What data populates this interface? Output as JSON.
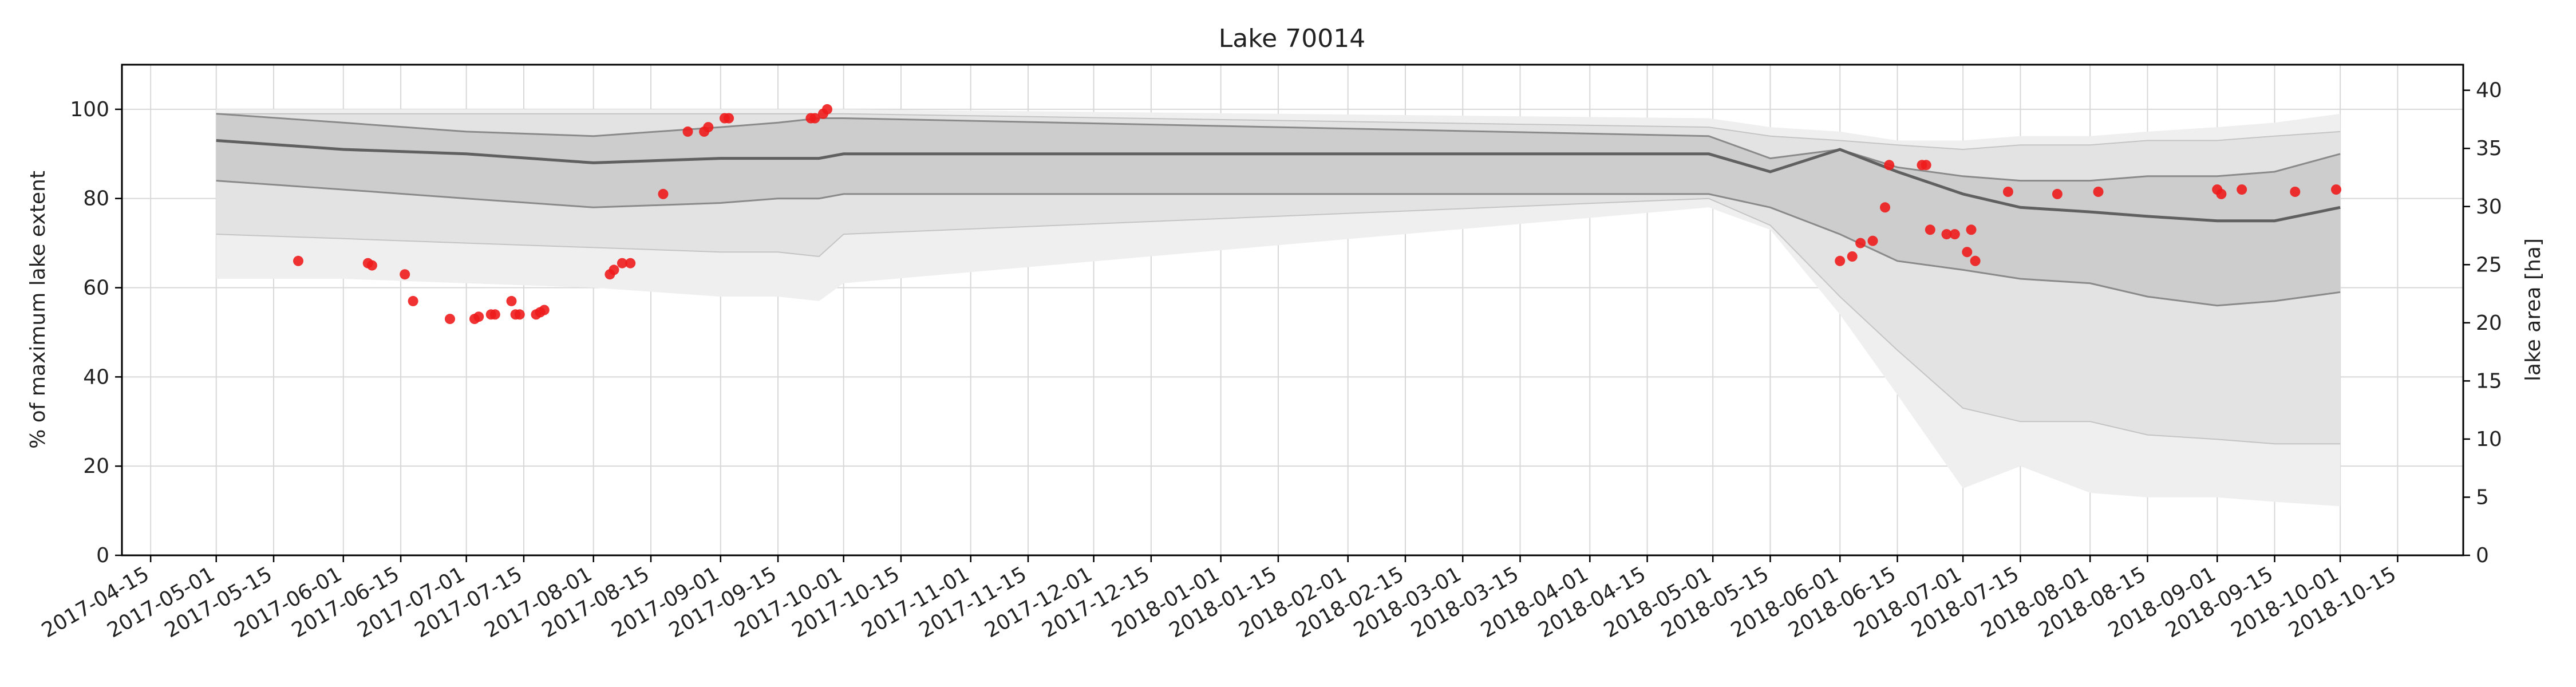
{
  "chart_data": {
    "type": "line",
    "title": "Lake 70014",
    "ylabel": "% of maximum lake extent",
    "y2label": "lake area [ha]",
    "xlabel": "",
    "ylim": [
      0,
      110
    ],
    "y2lim": [
      0,
      42.2
    ],
    "xlim": [
      "2017-04-08",
      "2018-10-31"
    ],
    "grid": true,
    "yticks": [
      0,
      20,
      40,
      60,
      80,
      100
    ],
    "y2ticks": [
      0,
      5,
      10,
      15,
      20,
      25,
      30,
      35,
      40
    ],
    "xticks": [
      "2017-04-15",
      "2017-05-01",
      "2017-05-15",
      "2017-06-01",
      "2017-06-15",
      "2017-07-01",
      "2017-07-15",
      "2017-08-01",
      "2017-08-15",
      "2017-09-01",
      "2017-09-15",
      "2017-10-01",
      "2017-10-15",
      "2017-11-01",
      "2017-11-15",
      "2017-12-01",
      "2017-12-15",
      "2018-01-01",
      "2018-01-15",
      "2018-02-01",
      "2018-02-15",
      "2018-03-01",
      "2018-03-15",
      "2018-04-01",
      "2018-04-15",
      "2018-05-01",
      "2018-05-15",
      "2018-06-01",
      "2018-06-15",
      "2018-07-01",
      "2018-07-15",
      "2018-08-01",
      "2018-08-15",
      "2018-09-01",
      "2018-09-15",
      "2018-10-01",
      "2018-10-15"
    ],
    "colors": {
      "band_outer": "#efefef",
      "band_middle": "#e3e3e3",
      "band_inner": "#cdcdcd",
      "band_edge": "#8a8a8a",
      "median": "#606060",
      "points": "#ee1c1c"
    },
    "bands": {
      "x": [
        "2017-05-01",
        "2017-06-01",
        "2017-07-01",
        "2017-08-01",
        "2017-09-01",
        "2017-09-15",
        "2017-09-25",
        "2017-10-01",
        "2018-04-30",
        "2018-05-15",
        "2018-06-01",
        "2018-06-15",
        "2018-07-01",
        "2018-07-15",
        "2018-08-01",
        "2018-08-15",
        "2018-09-01",
        "2018-09-15",
        "2018-10-01"
      ],
      "outer_upper": [
        100,
        100,
        100,
        100,
        100,
        100,
        100,
        100,
        98,
        96,
        95,
        93,
        93,
        94,
        94,
        95,
        96,
        97,
        99
      ],
      "outer_lower": [
        62,
        62,
        61,
        60,
        58,
        58,
        57,
        61,
        78,
        73,
        54,
        36,
        15,
        20,
        14,
        13,
        13,
        12,
        11
      ],
      "middle_upper": [
        99,
        99,
        99,
        99,
        99,
        99,
        99,
        99,
        96,
        94,
        93,
        92,
        91,
        92,
        92,
        93,
        93,
        94,
        95
      ],
      "middle_lower": [
        72,
        71,
        70,
        69,
        68,
        68,
        67,
        72,
        80,
        74,
        58,
        46,
        33,
        30,
        30,
        27,
        26,
        25,
        25
      ],
      "inner_upper": [
        99,
        97,
        95,
        94,
        96,
        97,
        98,
        98,
        94,
        89,
        91,
        87,
        85,
        84,
        84,
        85,
        85,
        86,
        90
      ],
      "inner_lower": [
        84,
        82,
        80,
        78,
        79,
        80,
        80,
        81,
        81,
        78,
        72,
        66,
        64,
        62,
        61,
        58,
        56,
        57,
        59
      ],
      "median": [
        93,
        91,
        90,
        88,
        89,
        89,
        89,
        90,
        90,
        86,
        91,
        86,
        81,
        78,
        77,
        76,
        75,
        75,
        78
      ]
    },
    "points": {
      "x": [
        "2017-05-21",
        "2017-06-07",
        "2017-06-08",
        "2017-06-16",
        "2017-06-18",
        "2017-06-27",
        "2017-07-03",
        "2017-07-04",
        "2017-07-07",
        "2017-07-08",
        "2017-07-12",
        "2017-07-13",
        "2017-07-14",
        "2017-07-18",
        "2017-07-19",
        "2017-07-20",
        "2017-08-05",
        "2017-08-06",
        "2017-08-08",
        "2017-08-10",
        "2017-08-18",
        "2017-08-24",
        "2017-08-28",
        "2017-08-29",
        "2017-09-02",
        "2017-09-03",
        "2017-09-23",
        "2017-09-24",
        "2017-09-26",
        "2017-09-27",
        "2018-06-01",
        "2018-06-04",
        "2018-06-06",
        "2018-06-09",
        "2018-06-12",
        "2018-06-13",
        "2018-06-21",
        "2018-06-22",
        "2018-06-23",
        "2018-06-27",
        "2018-06-29",
        "2018-07-02",
        "2018-07-03",
        "2018-07-04",
        "2018-07-12",
        "2018-07-24",
        "2018-08-03",
        "2018-09-01",
        "2018-09-02",
        "2018-09-07",
        "2018-09-20",
        "2018-09-30"
      ],
      "y": [
        66,
        65.5,
        65,
        63,
        57,
        53,
        53,
        53.5,
        54,
        54,
        57,
        54,
        54,
        54,
        54.5,
        55,
        63,
        64,
        65.5,
        65.5,
        81,
        95,
        95,
        96,
        98,
        98,
        98,
        98,
        99,
        100,
        66,
        67,
        70,
        70.5,
        78,
        87.5,
        87.5,
        87.5,
        73,
        72,
        72,
        68,
        73,
        66,
        81.5,
        81,
        81.5,
        82,
        81,
        82,
        81.5,
        82
      ]
    }
  }
}
